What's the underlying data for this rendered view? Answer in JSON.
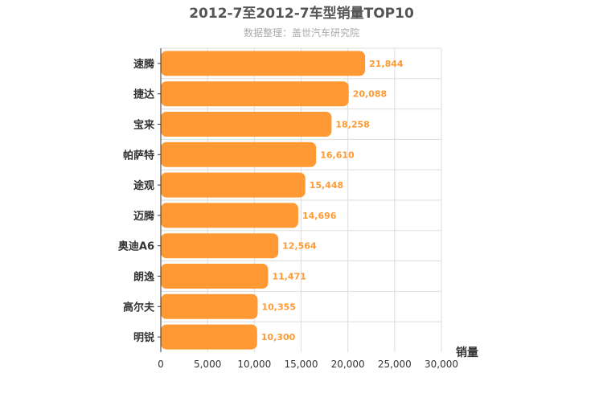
{
  "chart_data": {
    "type": "bar",
    "orientation": "horizontal",
    "title": "2012-7至2012-7车型销量TOP10",
    "subtitle": "数据整理：盖世汽车研究院",
    "xlabel": "销量",
    "ylabel": "",
    "categories": [
      "速腾",
      "捷达",
      "宝来",
      "帕萨特",
      "途观",
      "迈腾",
      "奥迪A6",
      "朗逸",
      "高尔夫",
      "明锐"
    ],
    "values": [
      21844,
      20088,
      18258,
      16610,
      15448,
      14696,
      12564,
      11471,
      10355,
      10300
    ],
    "value_labels": [
      "21,844",
      "20,088",
      "18,258",
      "16,610",
      "15,448",
      "14,696",
      "12,564",
      "11,471",
      "10,355",
      "10,300"
    ],
    "xlim": [
      0,
      30000
    ],
    "ticks": [
      0,
      5000,
      10000,
      15000,
      20000,
      25000,
      30000
    ],
    "tick_labels": [
      "0",
      "5,000",
      "10,000",
      "15,000",
      "20,000",
      "25,000",
      "30,000"
    ],
    "grid": true,
    "legend": "none",
    "bar_color": "#ff9933",
    "label_color": "#ff9933"
  }
}
